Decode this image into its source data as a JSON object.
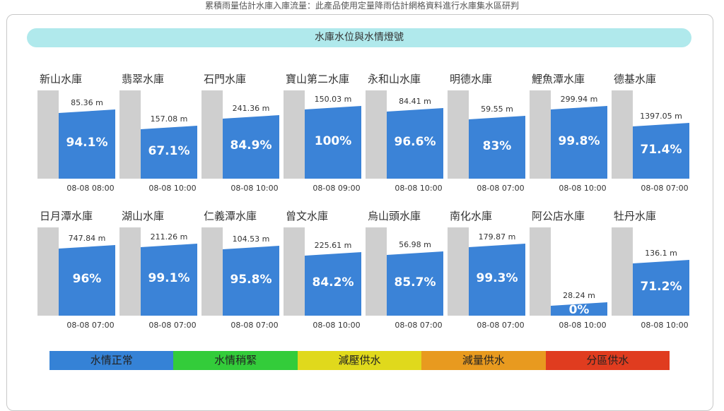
{
  "note": "累積雨量估計水庫入庫流量：此產品使用定量降雨估計網格資料進行水庫集水區研判",
  "banner": "水庫水位與水情燈號",
  "reservoirs": [
    {
      "name": "新山水庫",
      "elevation": "85.36 m",
      "percent": "94.1%",
      "level": 0.941,
      "time": "08-08 08:00"
    },
    {
      "name": "翡翠水庫",
      "elevation": "157.08 m",
      "percent": "67.1%",
      "level": 0.671,
      "time": "08-08 10:00"
    },
    {
      "name": "石門水庫",
      "elevation": "241.36 m",
      "percent": "84.9%",
      "level": 0.849,
      "time": "08-08 10:00"
    },
    {
      "name": "寶山第二水庫",
      "elevation": "150.03 m",
      "percent": "100%",
      "level": 1.0,
      "time": "08-08 09:00"
    },
    {
      "name": "永和山水庫",
      "elevation": "84.41 m",
      "percent": "96.6%",
      "level": 0.966,
      "time": "08-08 10:00"
    },
    {
      "name": "明德水庫",
      "elevation": "59.55 m",
      "percent": "83%",
      "level": 0.83,
      "time": "08-08 07:00"
    },
    {
      "name": "鯉魚潭水庫",
      "elevation": "299.94 m",
      "percent": "99.8%",
      "level": 0.998,
      "time": "08-08 10:00"
    },
    {
      "name": "德基水庫",
      "elevation": "1397.05 m",
      "percent": "71.4%",
      "level": 0.714,
      "time": "08-08 07:00"
    },
    {
      "name": "日月潭水庫",
      "elevation": "747.84 m",
      "percent": "96%",
      "level": 0.96,
      "time": "08-08 07:00"
    },
    {
      "name": "湖山水庫",
      "elevation": "211.26 m",
      "percent": "99.1%",
      "level": 0.991,
      "time": "08-08 07:00"
    },
    {
      "name": "仁義潭水庫",
      "elevation": "104.53 m",
      "percent": "95.8%",
      "level": 0.958,
      "time": "08-08 07:00"
    },
    {
      "name": "曾文水庫",
      "elevation": "225.61 m",
      "percent": "84.2%",
      "level": 0.842,
      "time": "08-08 10:00"
    },
    {
      "name": "烏山頭水庫",
      "elevation": "56.98 m",
      "percent": "85.7%",
      "level": 0.857,
      "time": "08-08 07:00"
    },
    {
      "name": "南化水庫",
      "elevation": "179.87 m",
      "percent": "99.3%",
      "level": 0.993,
      "time": "08-08 07:00"
    },
    {
      "name": "阿公店水庫",
      "elevation": "28.24 m",
      "percent": "0%",
      "level": 0.0,
      "time": "08-08 10:00"
    },
    {
      "name": "牡丹水庫",
      "elevation": "136.1 m",
      "percent": "71.2%",
      "level": 0.712,
      "time": "08-08 10:00"
    }
  ],
  "legend": [
    {
      "label": "水情正常",
      "color": "#3582d6"
    },
    {
      "label": "水情稍緊",
      "color": "#33cc3a"
    },
    {
      "label": "減壓供水",
      "color": "#e0d91c"
    },
    {
      "label": "減量供水",
      "color": "#e89a1f"
    },
    {
      "label": "分區供水",
      "color": "#e03c1f"
    }
  ],
  "colors": {
    "water": "#3b83d7",
    "tank": "#cfcfcf",
    "banner": "#b0e9ec"
  }
}
